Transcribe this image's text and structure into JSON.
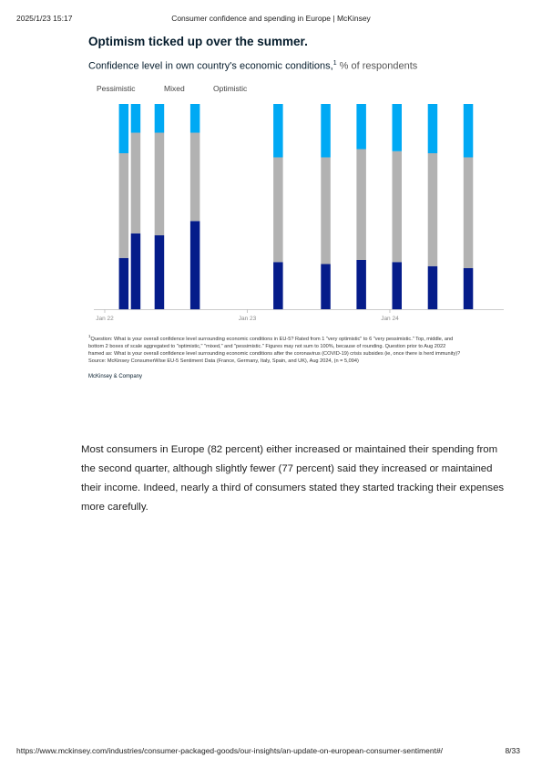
{
  "header": {
    "date": "2025/1/23 15:17",
    "title": "Consumer confidence and spending in Europe | McKinsey"
  },
  "chart_data": {
    "type": "bar",
    "stacked": true,
    "title": "Optimism ticked up over the summer.",
    "subtitle": "Confidence level in own country's economic conditions,",
    "subtitle_sup": "1",
    "subtitle_unit": "% of respondents",
    "legend": [
      "Pessimistic",
      "Mixed",
      "Optimistic"
    ],
    "legend_placement": "top-left",
    "x_tick_labels": [
      "Jan 22",
      "Jan 23",
      "Jan 24"
    ],
    "x_ticks_months": [
      0,
      12,
      24
    ],
    "x_months": [
      1.6,
      2.6,
      4.6,
      7.6,
      14.6,
      18.6,
      21.6,
      24.6,
      27.6,
      30.6
    ],
    "series": [
      {
        "name": "Pessimistic",
        "color": "#051c8a",
        "values": [
          25,
          37,
          36,
          43,
          23,
          22,
          24,
          23,
          21,
          20
        ]
      },
      {
        "name": "Mixed",
        "color": "#b2b2b2",
        "values": [
          51,
          49,
          50,
          43,
          51,
          52,
          54,
          54,
          55,
          54
        ]
      },
      {
        "name": "Optimistic",
        "color": "#00a9f4",
        "values": [
          24,
          14,
          14,
          14,
          26,
          26,
          22,
          23,
          24,
          26
        ]
      }
    ],
    "ylim": [
      0,
      100
    ],
    "grid": false,
    "colors": {
      "pessimistic": "#051c8a",
      "mixed": "#b2b2b2",
      "optimistic": "#00a9f4",
      "axis": "#bbbbbb"
    }
  },
  "footnote": {
    "sup": "1",
    "lines": [
      "Question: What is your overall confidence level surrounding economic conditions in EU-5? Rated from 1 \"very optimistic\" to 6 \"very pessimistic.\" Top, middle, and",
      "bottom 2 boxes of scale aggregated to \"optimistic,\" \"mixed,\" and \"pessimistic.\" Figures may not sum to 100%, because of rounding. Question prior to Aug 2022",
      "framed as: What is your overall confidence level surrounding economic conditions after the coronavirus (COVID-19) crisis subsides (ie, once there is herd immunity)?",
      "Source: McKinsey ConsumerWise EU-5 Sentiment Data (France, Germany, Italy, Spain, and UK), Aug 2024, (n = 5,094)"
    ]
  },
  "brand": "McKinsey & Company",
  "body_text": [
    "Most consumers in Europe (82 percent) either increased or maintained their spending from",
    "the second quarter, although slightly fewer (77 percent) said they increased or maintained",
    "their income. Indeed, nearly a third of consumers stated they started tracking their expenses",
    "more carefully."
  ],
  "footer": {
    "url": "https://www.mckinsey.com/industries/consumer-packaged-goods/our-insights/an-update-on-european-consumer-sentiment#/",
    "page": "8/33"
  }
}
